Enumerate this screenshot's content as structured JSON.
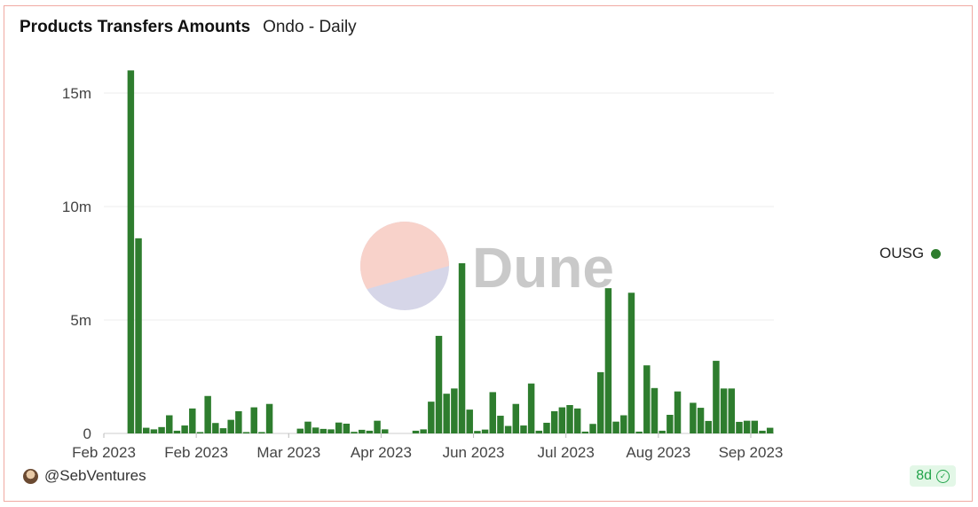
{
  "title": "Products Transfers Amounts",
  "subtitle": "Ondo - Daily",
  "watermark": "Dune",
  "legend": {
    "label": "OUSG",
    "color": "#2e7d2e"
  },
  "footer": {
    "user": "@SebVentures",
    "age": "8d"
  },
  "icons": {
    "verified": "check-circle-icon",
    "avatar": "avatar"
  },
  "chart_data": {
    "type": "bar",
    "y_ticks": [
      {
        "value": 0,
        "label": "0"
      },
      {
        "value": 5000000,
        "label": "5m"
      },
      {
        "value": 10000000,
        "label": "10m"
      },
      {
        "value": 15000000,
        "label": "15m"
      }
    ],
    "x_ticks": [
      {
        "index": 0,
        "label": "Feb 2023"
      },
      {
        "index": 12,
        "label": "Feb 2023"
      },
      {
        "index": 24,
        "label": "Mar 2023"
      },
      {
        "index": 36,
        "label": "Apr 2023"
      },
      {
        "index": 48,
        "label": "Jun 2023"
      },
      {
        "index": 60,
        "label": "Jul 2023"
      },
      {
        "index": 72,
        "label": "Aug 2023"
      },
      {
        "index": 84,
        "label": "Sep 2023"
      }
    ],
    "ylim": [
      0,
      16000000
    ],
    "grid": true,
    "legend_position": "right",
    "series": [
      {
        "name": "OUSG",
        "color": "#2e7d2e",
        "values": [
          0,
          0,
          0,
          16000000,
          8600000,
          250000,
          180000,
          280000,
          800000,
          120000,
          350000,
          1100000,
          60000,
          1650000,
          460000,
          230000,
          600000,
          980000,
          60000,
          1150000,
          60000,
          1300000,
          0,
          0,
          0,
          210000,
          520000,
          260000,
          200000,
          180000,
          480000,
          430000,
          70000,
          160000,
          120000,
          560000,
          180000,
          0,
          0,
          0,
          120000,
          180000,
          1400000,
          4300000,
          1750000,
          1980000,
          7500000,
          1050000,
          110000,
          170000,
          1820000,
          780000,
          330000,
          1300000,
          350000,
          2200000,
          120000,
          470000,
          980000,
          1150000,
          1250000,
          1100000,
          80000,
          420000,
          2700000,
          6400000,
          520000,
          800000,
          6200000,
          80000,
          3000000,
          2000000,
          120000,
          820000,
          1850000,
          0,
          1350000,
          1130000,
          550000,
          3200000,
          1980000,
          1980000,
          510000,
          560000,
          560000,
          120000,
          250000
        ]
      }
    ]
  }
}
